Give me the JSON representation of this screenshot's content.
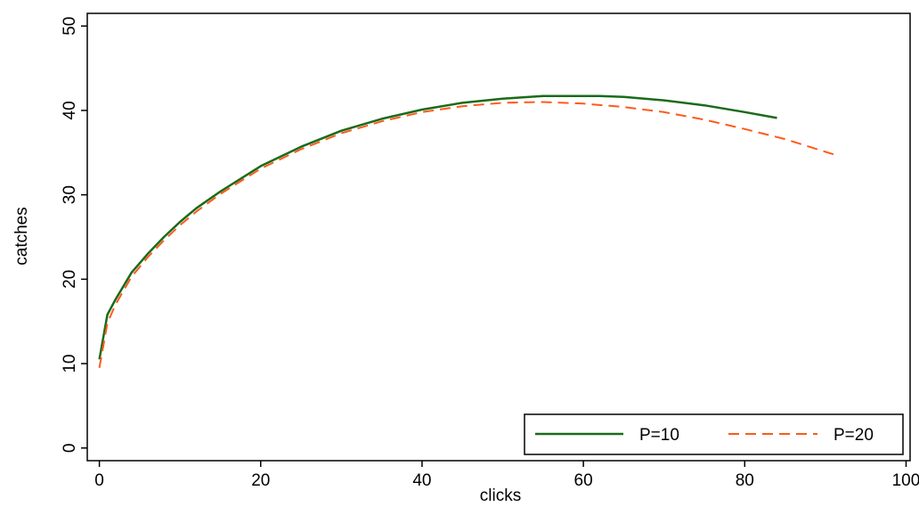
{
  "chart_data": {
    "type": "line",
    "title": "",
    "xlabel": "clicks",
    "ylabel": "catches",
    "xlim": [
      -1.5,
      100.5
    ],
    "ylim": [
      -1.5,
      51.5
    ],
    "xticks": [
      0,
      20,
      40,
      60,
      80,
      100
    ],
    "yticks": [
      0,
      10,
      20,
      30,
      40,
      50
    ],
    "xtick_labels": [
      "0",
      "20",
      "40",
      "60",
      "80",
      "100"
    ],
    "ytick_labels": [
      "0",
      "10",
      "20",
      "30",
      "40",
      "50"
    ],
    "grid": false,
    "legend_position": "bottom-right",
    "series": [
      {
        "name": "P=10",
        "color": "#1a6b1a",
        "dash": "solid",
        "x": [
          0,
          1,
          2,
          4,
          6,
          8,
          10,
          12,
          15,
          20,
          25,
          30,
          35,
          40,
          45,
          50,
          55,
          60,
          62,
          65,
          70,
          75,
          80,
          84
        ],
        "y": [
          10.5,
          15.8,
          17.6,
          20.8,
          23.0,
          25.0,
          26.8,
          28.4,
          30.4,
          33.4,
          35.7,
          37.6,
          39.0,
          40.1,
          40.9,
          41.4,
          41.7,
          41.7,
          41.7,
          41.6,
          41.2,
          40.6,
          39.8,
          39.1
        ]
      },
      {
        "name": "P=20",
        "color": "#ff5a1a",
        "dash": "dashed",
        "x": [
          0,
          1,
          2,
          4,
          6,
          8,
          10,
          12,
          15,
          20,
          25,
          30,
          35,
          40,
          45,
          50,
          55,
          60,
          65,
          70,
          75,
          80,
          85,
          91
        ],
        "y": [
          9.5,
          14.8,
          17.0,
          20.3,
          22.6,
          24.6,
          26.4,
          28.0,
          30.1,
          33.1,
          35.4,
          37.3,
          38.7,
          39.8,
          40.5,
          40.9,
          41.0,
          40.8,
          40.4,
          39.8,
          38.9,
          37.8,
          36.6,
          34.8
        ]
      }
    ]
  }
}
